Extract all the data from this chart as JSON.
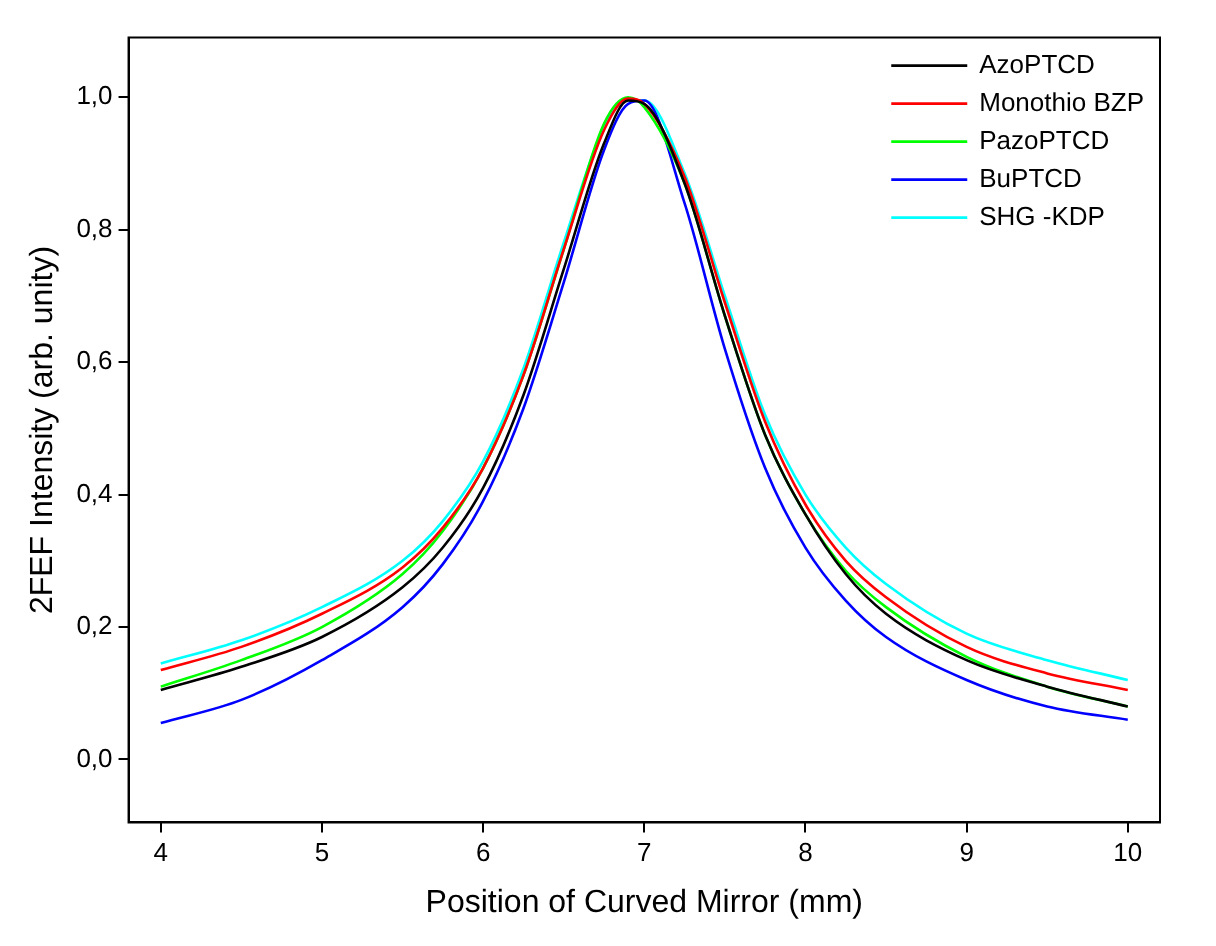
{
  "chart_data": {
    "type": "line",
    "xlabel": "Position of Curved Mirror (mm)",
    "ylabel": "2FEF Intensity (arb. unity)",
    "x": [
      4,
      4.5,
      5,
      5.5,
      5.75,
      6,
      6.25,
      6.5,
      6.75,
      6.9,
      7,
      7.25,
      7.5,
      7.75,
      8,
      8.25,
      8.5,
      9,
      9.5,
      10
    ],
    "series": [
      {
        "name": "AzoPTCD",
        "color": "#000000",
        "values": [
          0.105,
          0.14,
          0.185,
          0.26,
          0.32,
          0.41,
          0.55,
          0.74,
          0.93,
          0.995,
          0.99,
          0.87,
          0.67,
          0.49,
          0.37,
          0.28,
          0.22,
          0.15,
          0.11,
          0.08
        ]
      },
      {
        "name": "Monothio BZP",
        "color": "#ff0000",
        "values": [
          0.135,
          0.17,
          0.22,
          0.29,
          0.35,
          0.44,
          0.58,
          0.77,
          0.95,
          0.998,
          0.99,
          0.88,
          0.69,
          0.51,
          0.385,
          0.3,
          0.245,
          0.17,
          0.13,
          0.105
        ]
      },
      {
        "name": "PazoPTCD",
        "color": "#00ff00",
        "values": [
          0.11,
          0.15,
          0.2,
          0.28,
          0.345,
          0.44,
          0.58,
          0.77,
          0.96,
          1.0,
          0.985,
          0.87,
          0.67,
          0.49,
          0.37,
          0.285,
          0.23,
          0.155,
          0.11,
          0.08
        ]
      },
      {
        "name": "BuPTCD",
        "color": "#0000ff",
        "values": [
          0.055,
          0.09,
          0.15,
          0.23,
          0.295,
          0.39,
          0.53,
          0.72,
          0.92,
          0.99,
          0.995,
          0.84,
          0.62,
          0.44,
          0.32,
          0.24,
          0.185,
          0.12,
          0.08,
          0.06
        ]
      },
      {
        "name": "SHG -KDP",
        "color": "#00ffff",
        "values": [
          0.145,
          0.18,
          0.23,
          0.3,
          0.36,
          0.45,
          0.59,
          0.78,
          0.955,
          0.995,
          0.995,
          0.885,
          0.7,
          0.52,
          0.4,
          0.32,
          0.265,
          0.19,
          0.15,
          0.12
        ]
      }
    ],
    "xlim": [
      3.8,
      10.2
    ],
    "xticks": [
      4,
      5,
      6,
      7,
      8,
      9,
      10
    ],
    "ylim": [
      -0.095,
      1.09
    ],
    "yticks": [
      {
        "value": 0,
        "label": "0,0"
      },
      {
        "value": 0.2,
        "label": "0,2"
      },
      {
        "value": 0.4,
        "label": "0,4"
      },
      {
        "value": 0.6,
        "label": "0,6"
      },
      {
        "value": 0.8,
        "label": "0,8"
      },
      {
        "value": 1,
        "label": "1,0"
      }
    ],
    "grid": false,
    "legend": "top right",
    "marker": "none",
    "line_style": "solid"
  }
}
